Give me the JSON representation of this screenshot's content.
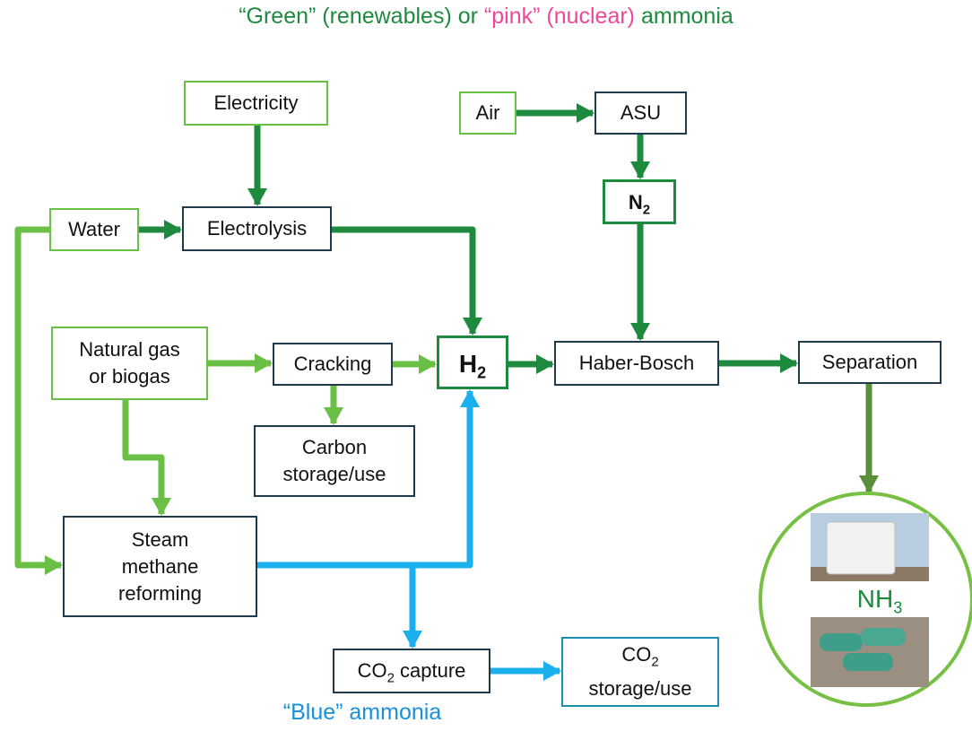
{
  "title": {
    "green_part": "“Green” (renewables) or",
    "pink_part": "“pink” (nuclear)",
    "end_part": "ammonia"
  },
  "footer": {
    "blue_part": "“Blue”",
    "end_part": "ammonia"
  },
  "nodes": {
    "electricity": {
      "label": "Electricity"
    },
    "air": {
      "label": "Air"
    },
    "asu": {
      "label": "ASU"
    },
    "n2": {
      "label": "N",
      "sub": "2"
    },
    "water": {
      "label": "Water"
    },
    "electrolysis": {
      "label": "Electrolysis"
    },
    "natural_gas": {
      "lines": [
        "Natural gas",
        "or biogas"
      ]
    },
    "cracking": {
      "label": "Cracking"
    },
    "h2": {
      "label": "H",
      "sub": "2"
    },
    "haber_bosch": {
      "label": "Haber-Bosch"
    },
    "separation": {
      "label": "Separation"
    },
    "carbon_storage": {
      "lines": [
        "Carbon",
        "storage/use"
      ]
    },
    "smr": {
      "lines": [
        "Steam",
        "methane",
        "reforming"
      ]
    },
    "co2_capture": {
      "label": "CO",
      "sub": "2",
      "rest": "capture"
    },
    "co2_storage": {
      "label": "CO",
      "sub": "2",
      "rest": "storage/use"
    },
    "nh3": {
      "label": "NH",
      "sub": "3"
    }
  }
}
